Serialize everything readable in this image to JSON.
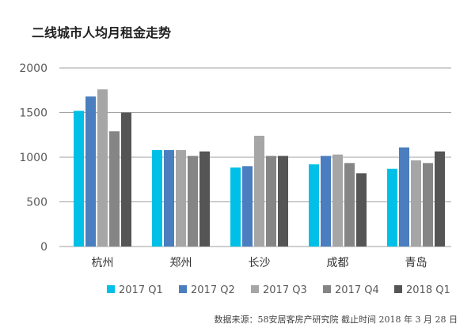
{
  "chart_data": {
    "type": "bar",
    "title": "二线城市人均月租金走势",
    "categories": [
      "杭州",
      "郑州",
      "长沙",
      "成都",
      "青岛"
    ],
    "series": [
      {
        "name": "2017 Q1",
        "color": "#00c0e8",
        "values": [
          1520,
          1080,
          885,
          920,
          870
        ]
      },
      {
        "name": "2017 Q2",
        "color": "#4a7ebf",
        "values": [
          1680,
          1080,
          900,
          1015,
          1110
        ]
      },
      {
        "name": "2017 Q3",
        "color": "#a6a6a6",
        "values": [
          1760,
          1080,
          1240,
          1030,
          965
        ]
      },
      {
        "name": "2017 Q4",
        "color": "#858585",
        "values": [
          1290,
          1015,
          1015,
          935,
          935
        ]
      },
      {
        "name": "2018 Q1",
        "color": "#555555",
        "values": [
          1500,
          1065,
          1015,
          820,
          1065
        ]
      }
    ],
    "ylim": [
      0,
      2000
    ],
    "yticks": [
      0,
      500,
      1000,
      1500,
      2000
    ],
    "grid": true,
    "legend": "bottom",
    "xlabel": "",
    "ylabel": ""
  },
  "source": "数据来源：58安居客房产研究院  截止时间 2018 年 3 月 28 日"
}
